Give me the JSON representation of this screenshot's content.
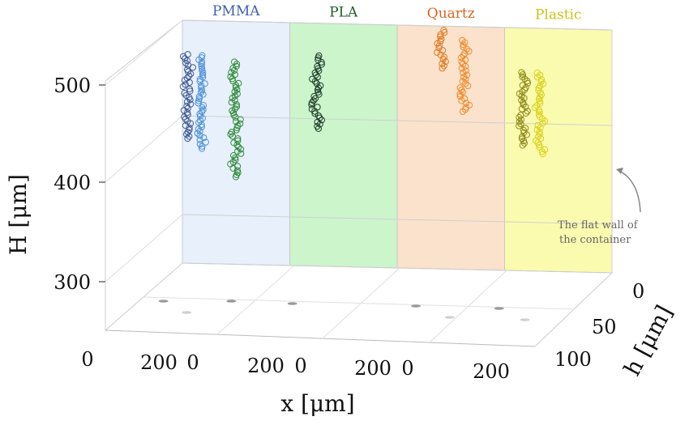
{
  "chart_data": {
    "type": "scatter",
    "title": "",
    "ylabel": "H [μm]",
    "xlabel": "x [μm]",
    "zlabel": "h [μm]",
    "H_ticks": [
      "300",
      "400",
      "500"
    ],
    "x_ticks": [
      "0",
      "200"
    ],
    "h_ticks": [
      "0",
      "50",
      "100"
    ],
    "H_range": [
      250,
      550
    ],
    "annotation": [
      "The flat wall of",
      "the container"
    ],
    "panels": [
      {
        "name": "PMMA",
        "color": "#3f5fa8",
        "fill": "#e8f0fb",
        "series": [
          {
            "color": "#3f5a94",
            "x": 10,
            "H_range": [
              404,
              508
            ]
          },
          {
            "color": "#4a90d9",
            "x": 35,
            "H_range": [
              392,
              507
            ]
          },
          {
            "color": "#2e8b3a",
            "x": 100,
            "H_range": [
              358,
              500
            ]
          }
        ]
      },
      {
        "name": "PLA",
        "color": "#1f5c2a",
        "fill": "#ccf5cc",
        "series": [
          {
            "color": "#1f3d2a",
            "x": 50,
            "H_range": [
              420,
              510
            ]
          }
        ]
      },
      {
        "name": "Quartz",
        "color": "#d9651f",
        "fill": "#fbe2cc",
        "series": [
          {
            "color": "#e07a1f",
            "x": 80,
            "H_range": [
              498,
              545
            ]
          },
          {
            "color": "#ef8b2a",
            "x": 125,
            "H_range": [
              445,
              533
            ]
          }
        ]
      },
      {
        "name": "Plastic",
        "color": "#c9c21a",
        "fill": "#fbfbb0",
        "series": [
          {
            "color": "#8f8a1a",
            "x": 35,
            "H_range": [
              405,
              495
            ]
          },
          {
            "color": "#d9d21a",
            "x": 65,
            "H_range": [
              395,
              495
            ]
          }
        ]
      }
    ]
  }
}
